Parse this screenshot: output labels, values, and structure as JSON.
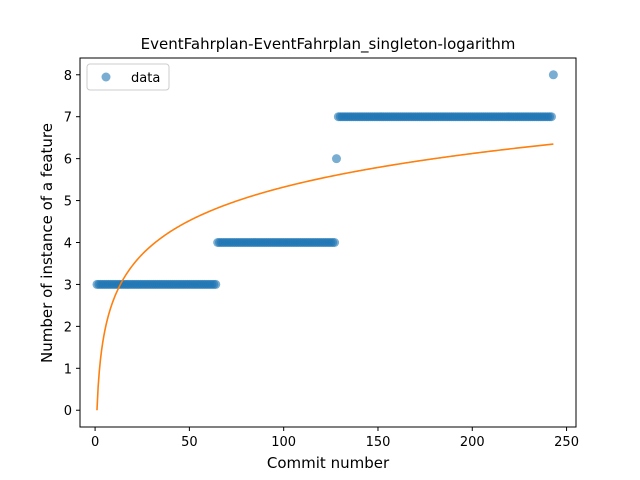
{
  "chart_data": {
    "type": "scatter",
    "title": "EventFahrplan-EventFahrplan_singleton-logarithm",
    "xlabel": "Commit number",
    "ylabel": "Number of instance of a feature",
    "xlim": [
      -8,
      255
    ],
    "ylim": [
      -0.4,
      8.4
    ],
    "xticks": [
      0,
      50,
      100,
      150,
      200,
      250
    ],
    "yticks": [
      0,
      1,
      2,
      3,
      4,
      5,
      6,
      7,
      8
    ],
    "legend": {
      "position": "top-left",
      "entries": [
        "data"
      ]
    },
    "colors": {
      "data": "#1f77b4",
      "fit": "#ff7f0e"
    },
    "series": [
      {
        "name": "data",
        "kind": "scatter",
        "segments": [
          {
            "x_start": 1,
            "x_end": 64,
            "y": 3
          },
          {
            "x_start": 65,
            "x_end": 127,
            "y": 4
          },
          {
            "x_start": 128,
            "x_end": 128,
            "y": 6
          },
          {
            "x_start": 129,
            "x_end": 242,
            "y": 7
          },
          {
            "x_start": 243,
            "x_end": 243,
            "y": 8
          }
        ]
      },
      {
        "name": "fit",
        "kind": "line",
        "formula": "y = 1.1555 * ln(x)",
        "coefficient": 1.1555,
        "x_range": [
          1,
          243
        ]
      }
    ]
  }
}
